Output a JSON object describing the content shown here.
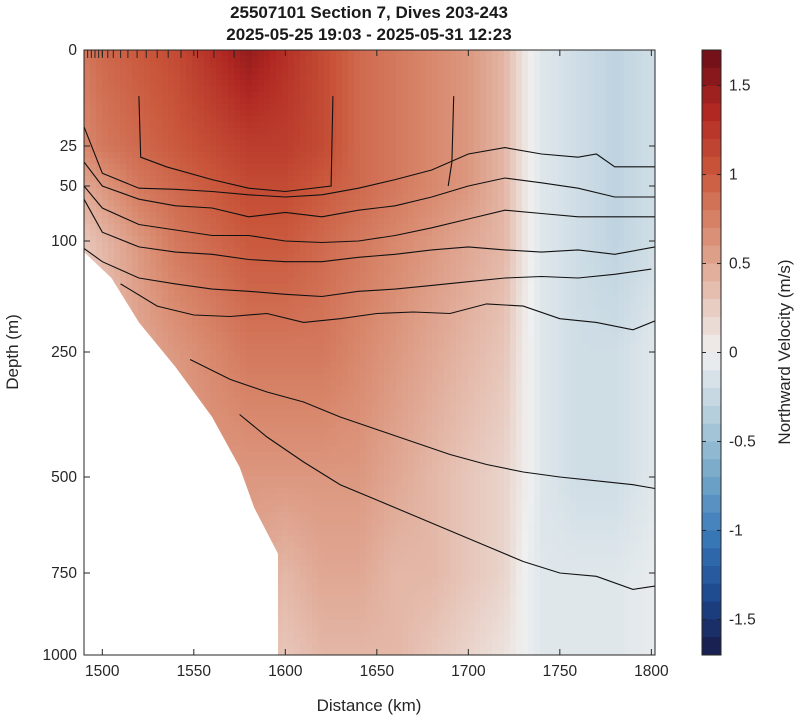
{
  "chart_data": {
    "type": "heatmap",
    "title_lines": [
      "25507101 Section 7, Dives 203-243",
      "2025-05-25 19:03 - 2025-05-31 12:23"
    ],
    "xlabel": "Distance (km)",
    "ylabel": "Depth (m)",
    "colorbar_label": "Northward Velocity (m/s)",
    "xlim": [
      1490,
      1802
    ],
    "x_ticks": [
      1500,
      1550,
      1600,
      1650,
      1700,
      1750,
      1800
    ],
    "y_ticks": [
      0,
      25,
      50,
      100,
      250,
      500,
      750,
      1000
    ],
    "y_scale": "stretched (non-linear)",
    "clim": [
      -1.7,
      1.7
    ],
    "colorbar_ticks": [
      1.5,
      1,
      0.5,
      0,
      -0.5,
      -1,
      -1.5
    ],
    "colormap": [
      "#171a47",
      "#1e4a90",
      "#3a7bba",
      "#77a9c9",
      "#b8d0de",
      "#eff0f0",
      "#e6c0b2",
      "#d98b70",
      "#c9563a",
      "#b02722",
      "#6b0d17"
    ],
    "grid": false,
    "field": {
      "x": [
        1490,
        1500,
        1520,
        1540,
        1560,
        1580,
        1600,
        1620,
        1640,
        1660,
        1680,
        1700,
        1720,
        1730,
        1740,
        1760,
        1780,
        1800
      ],
      "depth": [
        0,
        25,
        50,
        100,
        250,
        500,
        750,
        1000
      ],
      "velocity": [
        [
          0.8,
          0.9,
          1.0,
          1.1,
          1.3,
          1.5,
          1.3,
          1.1,
          0.9,
          0.8,
          0.7,
          0.6,
          0.4,
          0.1,
          -0.1,
          -0.2,
          -0.3,
          -0.2
        ],
        [
          0.7,
          0.8,
          0.9,
          1.0,
          1.1,
          1.2,
          1.2,
          1.1,
          0.9,
          0.8,
          0.7,
          0.6,
          0.4,
          0.1,
          -0.1,
          -0.2,
          -0.3,
          -0.2
        ],
        [
          0.5,
          0.6,
          0.8,
          0.9,
          1.0,
          1.1,
          1.1,
          1.0,
          0.9,
          0.8,
          0.7,
          0.6,
          0.4,
          0.1,
          -0.1,
          -0.2,
          -0.3,
          -0.2
        ],
        [
          0.3,
          0.4,
          0.6,
          0.8,
          0.9,
          1.0,
          1.0,
          0.9,
          0.8,
          0.7,
          0.6,
          0.5,
          0.4,
          0.1,
          -0.1,
          -0.2,
          -0.3,
          -0.2
        ],
        [
          0.2,
          0.3,
          0.5,
          0.6,
          0.7,
          0.8,
          0.8,
          0.8,
          0.7,
          0.6,
          0.5,
          0.4,
          0.3,
          0.05,
          -0.1,
          -0.2,
          -0.2,
          -0.1
        ],
        [
          0.2,
          0.2,
          0.4,
          0.5,
          0.6,
          0.6,
          0.6,
          0.6,
          0.6,
          0.5,
          0.4,
          0.3,
          0.2,
          0.05,
          -0.1,
          -0.2,
          -0.2,
          -0.1
        ],
        [
          0.1,
          0.2,
          0.3,
          0.4,
          0.4,
          0.5,
          0.4,
          0.5,
          0.5,
          0.4,
          0.4,
          0.3,
          0.2,
          0.0,
          -0.1,
          -0.1,
          -0.1,
          -0.05
        ],
        [
          0.1,
          0.1,
          0.2,
          0.3,
          0.3,
          0.4,
          0.3,
          0.4,
          0.4,
          0.4,
          0.3,
          0.2,
          0.1,
          0.0,
          -0.1,
          -0.1,
          -0.1,
          -0.05
        ]
      ]
    },
    "bottom_limit": {
      "x": [
        1490,
        1505,
        1520,
        1540,
        1560,
        1575,
        1583,
        1596,
        1596,
        1802
      ],
      "depth": [
        115,
        150,
        210,
        280,
        380,
        480,
        580,
        700,
        1000,
        1000
      ]
    },
    "contours": [
      {
        "x": [
          1520,
          1521,
          1535,
          1560,
          1580,
          1600,
          1625,
          1626
        ],
        "depth": [
          12,
          32,
          38,
          46,
          52,
          55,
          50,
          12
        ]
      },
      {
        "x": [
          1692,
          1691,
          1689
        ],
        "depth": [
          12,
          35,
          50
        ]
      },
      {
        "x": [
          1490,
          1500,
          1520,
          1540,
          1560,
          1580,
          1600,
          1620,
          1640,
          1660,
          1680,
          1700,
          1720,
          1740,
          1760,
          1770,
          1780,
          1802
        ],
        "depth": [
          20,
          42,
          52,
          53,
          55,
          58,
          60,
          58,
          52,
          46,
          40,
          30,
          26,
          30,
          32,
          30,
          38,
          38
        ]
      },
      {
        "x": [
          1490,
          1500,
          1520,
          1540,
          1560,
          1580,
          1600,
          1620,
          1640,
          1660,
          1680,
          1700,
          1720,
          1740,
          1760,
          1780,
          1802
        ],
        "depth": [
          35,
          50,
          62,
          68,
          70,
          78,
          74,
          78,
          72,
          68,
          60,
          50,
          45,
          48,
          52,
          60,
          60
        ]
      },
      {
        "x": [
          1490,
          1500,
          1520,
          1540,
          1560,
          1580,
          1600,
          1620,
          1640,
          1660,
          1680,
          1700,
          1720,
          1740,
          1760,
          1780,
          1802
        ],
        "depth": [
          50,
          70,
          85,
          90,
          95,
          95,
          100,
          102,
          100,
          95,
          88,
          80,
          72,
          75,
          78,
          78,
          78
        ]
      },
      {
        "x": [
          1490,
          1500,
          1520,
          1540,
          1560,
          1580,
          1600,
          1620,
          1640,
          1660,
          1680,
          1700,
          1720,
          1740,
          1760,
          1780,
          1802
        ],
        "depth": [
          62,
          92,
          108,
          115,
          118,
          125,
          128,
          128,
          122,
          118,
          112,
          108,
          112,
          115,
          112,
          118,
          108
        ]
      },
      {
        "x": [
          1490,
          1500,
          1520,
          1540,
          1560,
          1580,
          1600,
          1620,
          1640,
          1660,
          1680,
          1700,
          1720,
          1740,
          1760,
          1780,
          1800
        ],
        "depth": [
          110,
          128,
          150,
          158,
          165,
          168,
          172,
          175,
          168,
          165,
          160,
          155,
          150,
          148,
          150,
          145,
          138
        ]
      },
      {
        "x": [
          1510,
          1530,
          1550,
          1570,
          1590,
          1610,
          1630,
          1650,
          1670,
          1690,
          1710,
          1730,
          1750,
          1770,
          1790,
          1802
        ],
        "depth": [
          158,
          188,
          200,
          202,
          198,
          210,
          205,
          198,
          196,
          198,
          185,
          188,
          205,
          210,
          220,
          208
        ]
      },
      {
        "x": [
          1548,
          1570,
          1590,
          1610,
          1630,
          1650,
          1670,
          1690,
          1710,
          1730,
          1750,
          1770,
          1790,
          1802
        ],
        "depth": [
          265,
          305,
          330,
          350,
          380,
          405,
          430,
          455,
          475,
          490,
          500,
          510,
          520,
          530
        ]
      },
      {
        "x": [
          1575,
          1590,
          1610,
          1630,
          1650,
          1670,
          1690,
          1710,
          1730,
          1750,
          1770,
          1790,
          1802
        ],
        "depth": [
          375,
          420,
          470,
          520,
          560,
          600,
          640,
          680,
          720,
          750,
          760,
          800,
          790
        ]
      }
    ],
    "dive_ticks_x": [
      1492,
      1494,
      1496,
      1498,
      1500,
      1503,
      1506,
      1510,
      1514,
      1519,
      1524,
      1530,
      1536,
      1543,
      1552,
      1561,
      1572
    ]
  }
}
